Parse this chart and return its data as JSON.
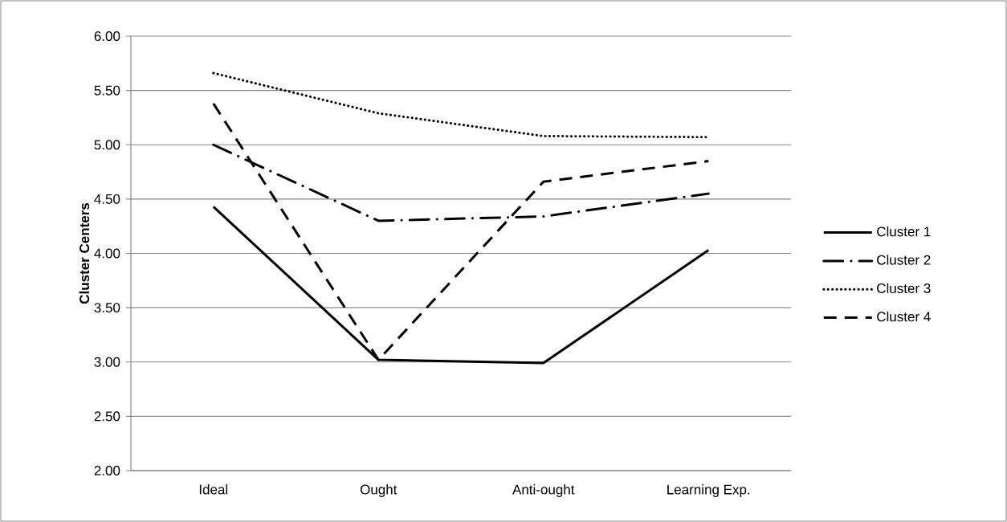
{
  "chart_data": {
    "type": "line",
    "ylabel": "Cluster Centers",
    "categories": [
      "Ideal",
      "Ought",
      "Anti-ought",
      "Learning Exp."
    ],
    "series": [
      {
        "name": "Cluster 1",
        "color": "#000000",
        "line_style": "solid",
        "values": [
          4.43,
          3.02,
          2.99,
          4.03
        ]
      },
      {
        "name": "Cluster 2",
        "color": "#000000",
        "line_style": "dashdot",
        "values": [
          5.0,
          4.3,
          4.34,
          4.55
        ]
      },
      {
        "name": "Cluster 3",
        "color": "#000000",
        "line_style": "dotted",
        "values": [
          5.66,
          5.29,
          5.08,
          5.07
        ]
      },
      {
        "name": "Cluster 4",
        "color": "#000000",
        "line_style": "dashed",
        "values": [
          5.38,
          3.02,
          4.66,
          4.85
        ]
      }
    ],
    "ylim": [
      2,
      6
    ],
    "yticks": [
      {
        "value": 2,
        "label": "2.00"
      },
      {
        "value": 2.5,
        "label": "2.50"
      },
      {
        "value": 3,
        "label": "3.00"
      },
      {
        "value": 3.5,
        "label": "3.50"
      },
      {
        "value": 4,
        "label": "4.00"
      },
      {
        "value": 4.5,
        "label": "4.50"
      },
      {
        "value": 5,
        "label": "5.00"
      },
      {
        "value": 5.5,
        "label": "5.50"
      },
      {
        "value": 6,
        "label": "6.00"
      }
    ],
    "grid": "y",
    "legend": "right",
    "marker": "none"
  }
}
